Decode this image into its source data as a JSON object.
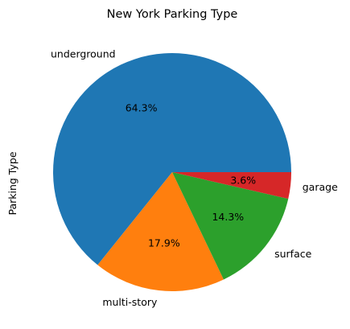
{
  "chart_data": {
    "type": "pie",
    "title": "New York Parking Type",
    "ylabel": "Parking Type",
    "start_angle_deg": 0,
    "direction": "counterclockwise",
    "slices": [
      {
        "label": "underground",
        "value": 64.3,
        "pct_label": "64.3%",
        "color": "#1f77b4"
      },
      {
        "label": "multi-story",
        "value": 17.9,
        "pct_label": "17.9%",
        "color": "#ff7f0e"
      },
      {
        "label": "surface",
        "value": 14.3,
        "pct_label": "14.3%",
        "color": "#2ca02c"
      },
      {
        "label": "garage",
        "value": 3.6,
        "pct_label": "3.6%",
        "color": "#d62728"
      }
    ]
  }
}
